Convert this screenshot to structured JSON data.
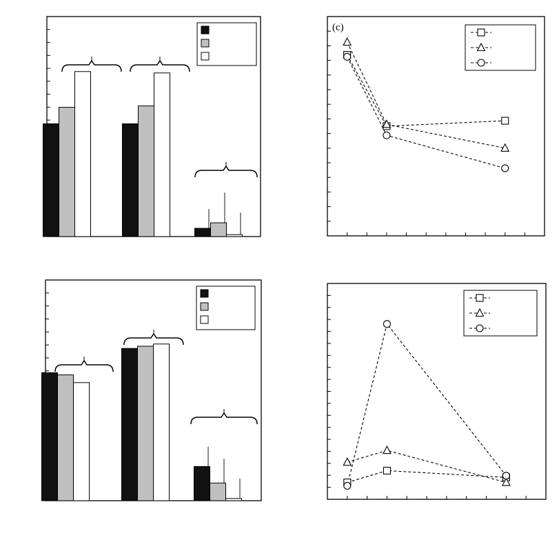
{
  "chart_data": [
    {
      "panel": "top-left",
      "type": "bar",
      "categories": [
        "",
        "",
        ""
      ],
      "series": [
        {
          "values": [
            41,
            41,
            3
          ],
          "errors": [
            0,
            0,
            7
          ]
        },
        {
          "values": [
            47,
            47.5,
            5
          ],
          "errors": [
            0,
            0,
            11
          ]
        },
        {
          "values": [
            60,
            59.5,
            0.7
          ],
          "errors": [
            0,
            0,
            8
          ]
        }
      ],
      "colors": [
        "#111111",
        "#c0c0c0",
        "#ffffff"
      ],
      "ylim": [
        0,
        80
      ],
      "legend": "top-right",
      "grid": false
    },
    {
      "panel": "top-right",
      "label": "(c)",
      "type": "line",
      "x": [
        1,
        2,
        5
      ],
      "series": [
        {
          "marker": "square",
          "values": [
            8.9,
            5.0,
            5.3
          ]
        },
        {
          "marker": "triangle",
          "values": [
            9.6,
            5.1,
            3.8
          ]
        },
        {
          "marker": "circle",
          "values": [
            8.8,
            4.5,
            2.7
          ]
        }
      ],
      "xlim": [
        0.5,
        6
      ],
      "ylim": [
        -1.0,
        11.0
      ],
      "legend": "top-right",
      "grid": false
    },
    {
      "panel": "bottom-left",
      "type": "bar",
      "categories": [
        "",
        "",
        ""
      ],
      "series": [
        {
          "values": [
            58,
            69,
            15.5
          ],
          "errors": [
            0,
            0,
            9
          ]
        },
        {
          "values": [
            57,
            70,
            8
          ],
          "errors": [
            0,
            0,
            11
          ]
        },
        {
          "values": [
            53.5,
            71,
            1
          ],
          "errors": [
            0,
            0,
            9
          ]
        }
      ],
      "colors": [
        "#111111",
        "#c0c0c0",
        "#ffffff"
      ],
      "ylim": [
        0,
        100
      ],
      "legend": "top-right",
      "grid": false
    },
    {
      "panel": "bottom-right",
      "type": "line",
      "x": [
        1,
        2,
        5
      ],
      "series": [
        {
          "marker": "square",
          "values": [
            0.9,
            1.6,
            1.2
          ]
        },
        {
          "marker": "triangle",
          "values": [
            2.1,
            2.8,
            0.9
          ]
        },
        {
          "marker": "circle",
          "values": [
            0.7,
            10.3,
            1.3
          ]
        }
      ],
      "xlim": [
        0.5,
        6
      ],
      "ylim": [
        -0.1,
        12.7
      ],
      "legend": "top-right",
      "grid": false
    }
  ]
}
